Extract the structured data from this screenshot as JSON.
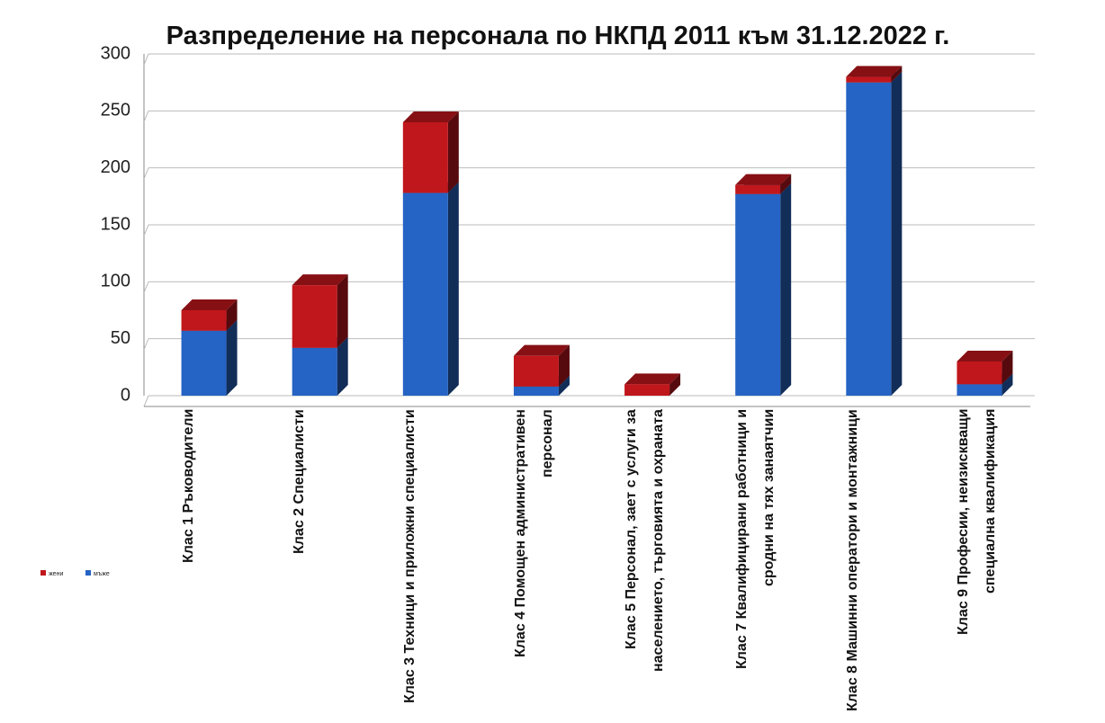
{
  "chart_data": {
    "type": "bar",
    "stacked": true,
    "title": "Разпределение на персонала по  НКПД 2011 към 31.12.2022 г.",
    "categories": [
      "Клас 1 Ръководители",
      "Клас 2 Специалисти",
      "Клас 3 Техници и приложни специалисти",
      "Клас 4 Помощен административен персонал",
      "Клас 5 Персонал, зает с услуги за населението, търговията и охраната",
      "Клас 7 Квалифицирани работници и сродни на тях занаятчии",
      "Клас 8 Машинни оператори и монтажници",
      "Клас 9 Професии, неизискващи специална квалификация"
    ],
    "series": [
      {
        "name": "мъже",
        "color": "#2563c4",
        "values": [
          57,
          42,
          178,
          8,
          0,
          177,
          275,
          10
        ]
      },
      {
        "name": "жени",
        "color": "#c0171c",
        "values": [
          18,
          55,
          62,
          27,
          10,
          8,
          5,
          20
        ]
      }
    ],
    "ylim": [
      0,
      300
    ],
    "yticks": [
      0,
      50,
      100,
      150,
      200,
      250,
      300
    ],
    "grid": true,
    "legend": "left"
  }
}
